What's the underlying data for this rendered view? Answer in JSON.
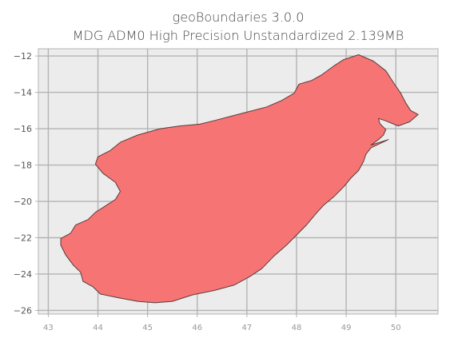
{
  "chart_data": {
    "type": "map",
    "title": "geoBoundaries 3.0.0",
    "subtitle": "MDG ADM0 High Precision Unstandardized 2.139MB",
    "x_ticks": [
      "43",
      "44",
      "45",
      "46",
      "47",
      "48",
      "49",
      "50"
    ],
    "y_ticks": [
      "−12",
      "−14",
      "−16",
      "−18",
      "−20",
      "−22",
      "−24",
      "−26"
    ],
    "xlim": [
      42.8,
      50.85
    ],
    "ylim": [
      -26.2,
      -11.6
    ],
    "grid": true,
    "fill_color": "#f77474",
    "edge_color": "#5a3b3b",
    "background_color": "#ececec",
    "grid_color": "#b3b3b3",
    "outline": [
      [
        49.25,
        -11.93
      ],
      [
        49.55,
        -12.28
      ],
      [
        49.8,
        -12.82
      ],
      [
        49.95,
        -13.45
      ],
      [
        50.1,
        -14.05
      ],
      [
        50.2,
        -14.58
      ],
      [
        50.3,
        -15.0
      ],
      [
        50.45,
        -15.22
      ],
      [
        50.28,
        -15.62
      ],
      [
        50.05,
        -15.85
      ],
      [
        49.78,
        -15.55
      ],
      [
        49.65,
        -15.44
      ],
      [
        49.68,
        -15.72
      ],
      [
        49.8,
        -16.05
      ],
      [
        49.75,
        -16.35
      ],
      [
        49.65,
        -16.6
      ],
      [
        49.5,
        -16.9
      ],
      [
        49.85,
        -16.6
      ],
      [
        49.5,
        -17.05
      ],
      [
        49.4,
        -17.4
      ],
      [
        49.35,
        -17.8
      ],
      [
        49.25,
        -18.3
      ],
      [
        49.1,
        -18.7
      ],
      [
        48.95,
        -19.2
      ],
      [
        48.75,
        -19.75
      ],
      [
        48.55,
        -20.2
      ],
      [
        48.4,
        -20.65
      ],
      [
        48.2,
        -21.3
      ],
      [
        48.0,
        -21.85
      ],
      [
        47.8,
        -22.4
      ],
      [
        47.55,
        -23.0
      ],
      [
        47.3,
        -23.7
      ],
      [
        47.05,
        -24.15
      ],
      [
        46.75,
        -24.6
      ],
      [
        46.35,
        -24.9
      ],
      [
        45.9,
        -25.15
      ],
      [
        45.5,
        -25.5
      ],
      [
        45.15,
        -25.58
      ],
      [
        44.8,
        -25.5
      ],
      [
        44.4,
        -25.3
      ],
      [
        44.05,
        -25.1
      ],
      [
        43.9,
        -24.7
      ],
      [
        43.7,
        -24.4
      ],
      [
        43.65,
        -23.9
      ],
      [
        43.5,
        -23.5
      ],
      [
        43.35,
        -22.95
      ],
      [
        43.25,
        -22.4
      ],
      [
        43.25,
        -22.05
      ],
      [
        43.45,
        -21.75
      ],
      [
        43.55,
        -21.3
      ],
      [
        43.8,
        -21.0
      ],
      [
        43.95,
        -20.6
      ],
      [
        44.15,
        -20.25
      ],
      [
        44.35,
        -19.9
      ],
      [
        44.45,
        -19.45
      ],
      [
        44.35,
        -18.95
      ],
      [
        44.1,
        -18.45
      ],
      [
        43.95,
        -17.95
      ],
      [
        44.0,
        -17.55
      ],
      [
        44.25,
        -17.2
      ],
      [
        44.45,
        -16.75
      ],
      [
        44.8,
        -16.35
      ],
      [
        45.25,
        -16.0
      ],
      [
        45.65,
        -15.85
      ],
      [
        46.05,
        -15.75
      ],
      [
        46.35,
        -15.55
      ],
      [
        46.7,
        -15.3
      ],
      [
        47.05,
        -15.05
      ],
      [
        47.4,
        -14.8
      ],
      [
        47.7,
        -14.45
      ],
      [
        47.95,
        -14.05
      ],
      [
        48.05,
        -13.55
      ],
      [
        48.3,
        -13.35
      ],
      [
        48.5,
        -13.05
      ],
      [
        48.75,
        -12.55
      ],
      [
        48.95,
        -12.2
      ]
    ]
  }
}
